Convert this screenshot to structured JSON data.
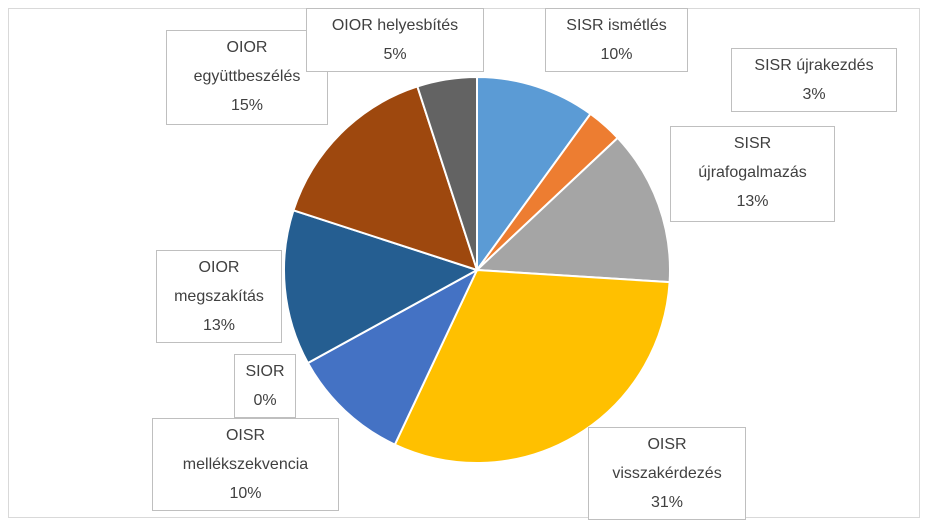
{
  "chart_data": {
    "type": "pie",
    "categories": [
      "SISR ismétlés",
      "SISR újrakezdés",
      "SISR újrafogalmazás",
      "OISR visszakérdezés",
      "OISR mellékszekvencia",
      "SIOR",
      "OIOR megszakítás",
      "OIOR együttbeszélés",
      "OIOR helyesbítés"
    ],
    "values": [
      10,
      3,
      13,
      31,
      10,
      0,
      13,
      15,
      5
    ],
    "value_labels": [
      "10%",
      "3%",
      "13%",
      "31%",
      "10%",
      "0%",
      "13%",
      "15%",
      "5%"
    ],
    "colors": [
      "#5b9bd5",
      "#ed7d31",
      "#a5a5a5",
      "#ffc000",
      "#4472c4",
      "#70ad47",
      "#255e91",
      "#9e480e",
      "#636363"
    ]
  }
}
